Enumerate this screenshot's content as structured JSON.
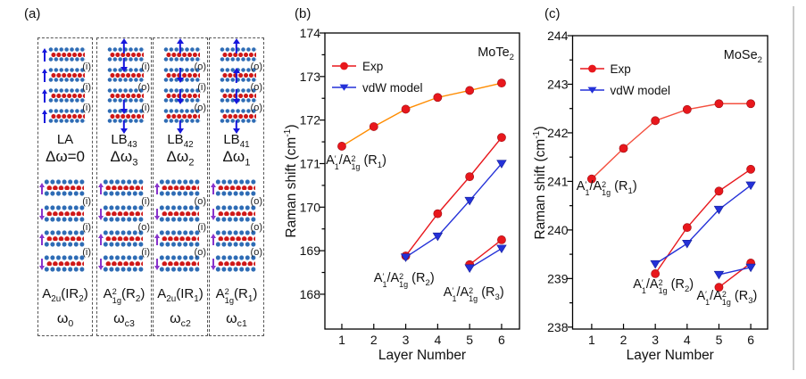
{
  "panel_a": {
    "label": "(a)",
    "colors": {
      "dot_blue": "#2e6cb5",
      "dot_red": "#cf1717",
      "arrow_top": "#1616dd",
      "arrow_bottom": "#8833cc"
    },
    "columns": [
      {
        "mode": "LA",
        "delta": "Δω=0",
        "io": [
          "(i)",
          "(i)",
          "(i)"
        ],
        "sym": "A_{2u}(IR_{2})",
        "omega": "ω_{0}",
        "arrows_top": "side",
        "arrows_bottom": [
          "up",
          "down",
          "up",
          "down"
        ]
      },
      {
        "mode": "LB_{43}",
        "delta": "Δω_{3}",
        "io": [
          "(i)",
          "(o)",
          "(i)"
        ],
        "sym": "A\\s{2}{1g}(R_{2})",
        "omega": "ω_{c3}",
        "arrows_top": [
          [
            "above1",
            "up"
          ],
          [
            "gap12",
            "down"
          ],
          [
            "gap34",
            "down"
          ],
          [
            "below4",
            "down"
          ]
        ],
        "arrows_bottom": [
          "up",
          "down",
          "up",
          "down"
        ]
      },
      {
        "mode": "LB_{42}",
        "delta": "Δω_{2}",
        "io": [
          "(o)",
          "(i)",
          "(o)"
        ],
        "sym": "A_{2u}(IR_{1})",
        "omega": "ω_{c2}",
        "arrows_top": [
          [
            "above1",
            "up"
          ],
          [
            "block2",
            "down"
          ],
          [
            "block3",
            "down"
          ],
          [
            "below4",
            "down"
          ]
        ],
        "arrows_bottom": [
          "up",
          "down",
          "up",
          "down"
        ]
      },
      {
        "mode": "LB_{41}",
        "delta": "Δω_{1}",
        "io": [
          "(o)",
          "(o)",
          "(o)"
        ],
        "sym": "A\\s{2}{1g}(R_{1})",
        "omega": "ω_{c1}",
        "arrows_top": [
          [
            "above1",
            "up"
          ],
          [
            "block2",
            "up"
          ],
          [
            "block3",
            "down"
          ],
          [
            "below4",
            "down"
          ]
        ],
        "arrows_bottom": [
          "up",
          "down",
          "up",
          "down"
        ]
      }
    ]
  },
  "chart_data": [
    {
      "type": "line",
      "panel_label": "(b)",
      "compound": "MoTe_{2}",
      "xlabel": "Layer Number",
      "ylabel": "Raman shift (cm^{-1})",
      "xlim": [
        0.47,
        6.56
      ],
      "ylim": [
        167.2,
        174
      ],
      "xticks": [
        1,
        2,
        3,
        4,
        5,
        6
      ],
      "yticks": [
        168,
        169,
        170,
        171,
        172,
        173,
        174
      ],
      "legend": [
        {
          "label": "Exp",
          "marker": "circle",
          "color": "#e8171c"
        },
        {
          "label": "vdW model",
          "marker": "triangle",
          "color": "#2431d8"
        }
      ],
      "series": [
        {
          "name": "Exp R1",
          "marker": "circle",
          "marker_color": "#e8171c",
          "line_color": "#ff8c00",
          "x": [
            1,
            2,
            3,
            4,
            5,
            6
          ],
          "y": [
            171.4,
            171.85,
            172.25,
            172.52,
            172.68,
            172.85
          ]
        },
        {
          "name": "Exp R2",
          "marker": "circle",
          "marker_color": "#e8171c",
          "line_color": "#e8171c",
          "x": [
            3,
            4,
            5,
            6
          ],
          "y": [
            168.88,
            169.85,
            170.7,
            171.6
          ]
        },
        {
          "name": "vdW R2",
          "marker": "triangle",
          "marker_color": "#2431d8",
          "line_color": "#2431d8",
          "x": [
            3,
            4,
            5,
            6
          ],
          "y": [
            168.85,
            169.33,
            170.15,
            171.0
          ]
        },
        {
          "name": "Exp R3",
          "marker": "circle",
          "marker_color": "#e8171c",
          "line_color": "#e8171c",
          "x": [
            5,
            6
          ],
          "y": [
            168.68,
            169.25
          ]
        },
        {
          "name": "vdW R3",
          "marker": "triangle",
          "marker_color": "#2431d8",
          "line_color": "#2431d8",
          "x": [
            5,
            6
          ],
          "y": [
            168.6,
            169.05
          ]
        }
      ],
      "annotations": [
        {
          "text": "A\\s{′}{1}/A\\s{2}{1g} (R_{1})",
          "x": 0.5,
          "y": 171.0
        },
        {
          "text": "A\\s{′}{1}/A\\s{2}{1g} (R_{2})",
          "x": 2.0,
          "y": 168.3
        },
        {
          "text": "A\\s{′}{1}/A\\s{2}{1g} (R_{3})",
          "x": 4.18,
          "y": 167.97
        }
      ]
    },
    {
      "type": "line",
      "panel_label": "(c)",
      "compound": "MoSe_{2}",
      "xlabel": "Layer Number",
      "ylabel": "Raman shift (cm^{-1})",
      "xlim": [
        0.4,
        6.53
      ],
      "ylim": [
        237.96,
        244
      ],
      "xticks": [
        1,
        2,
        3,
        4,
        5,
        6
      ],
      "yticks": [
        238,
        239,
        240,
        241,
        242,
        243,
        244
      ],
      "legend": [
        {
          "label": "Exp",
          "marker": "circle",
          "color": "#e8171c"
        },
        {
          "label": "vdW model",
          "marker": "triangle",
          "color": "#2431d8"
        }
      ],
      "series": [
        {
          "name": "Exp R1",
          "marker": "circle",
          "marker_color": "#e8171c",
          "line_color": "#f4503f",
          "x": [
            1,
            2,
            3,
            4,
            5,
            6
          ],
          "y": [
            241.05,
            241.68,
            242.25,
            242.48,
            242.6,
            242.6
          ]
        },
        {
          "name": "Exp R2",
          "marker": "circle",
          "marker_color": "#e8171c",
          "line_color": "#e8171c",
          "x": [
            3,
            4,
            5,
            6
          ],
          "y": [
            239.1,
            240.05,
            240.8,
            241.25
          ]
        },
        {
          "name": "vdW R2",
          "marker": "triangle",
          "marker_color": "#2431d8",
          "line_color": "#2431d8",
          "x": [
            3,
            4,
            5,
            6
          ],
          "y": [
            239.3,
            239.72,
            240.42,
            240.92
          ]
        },
        {
          "name": "Exp R3",
          "marker": "circle",
          "marker_color": "#e8171c",
          "line_color": "#e8171c",
          "x": [
            5,
            6
          ],
          "y": [
            238.82,
            239.32
          ]
        },
        {
          "name": "vdW R3",
          "marker": "triangle",
          "marker_color": "#2431d8",
          "line_color": "#2431d8",
          "x": [
            5,
            6
          ],
          "y": [
            239.08,
            239.23
          ]
        }
      ],
      "annotations": [
        {
          "text": "A\\s{′}{1}/A\\s{2}{1g} (R_{1})",
          "x": 0.52,
          "y": 240.84
        },
        {
          "text": "A\\s{′}{1}/A\\s{2}{1g} (R_{2})",
          "x": 2.3,
          "y": 238.82
        },
        {
          "text": "A\\s{′}{1}/A\\s{2}{1g} (R_{3})",
          "x": 4.3,
          "y": 238.58
        }
      ]
    }
  ]
}
